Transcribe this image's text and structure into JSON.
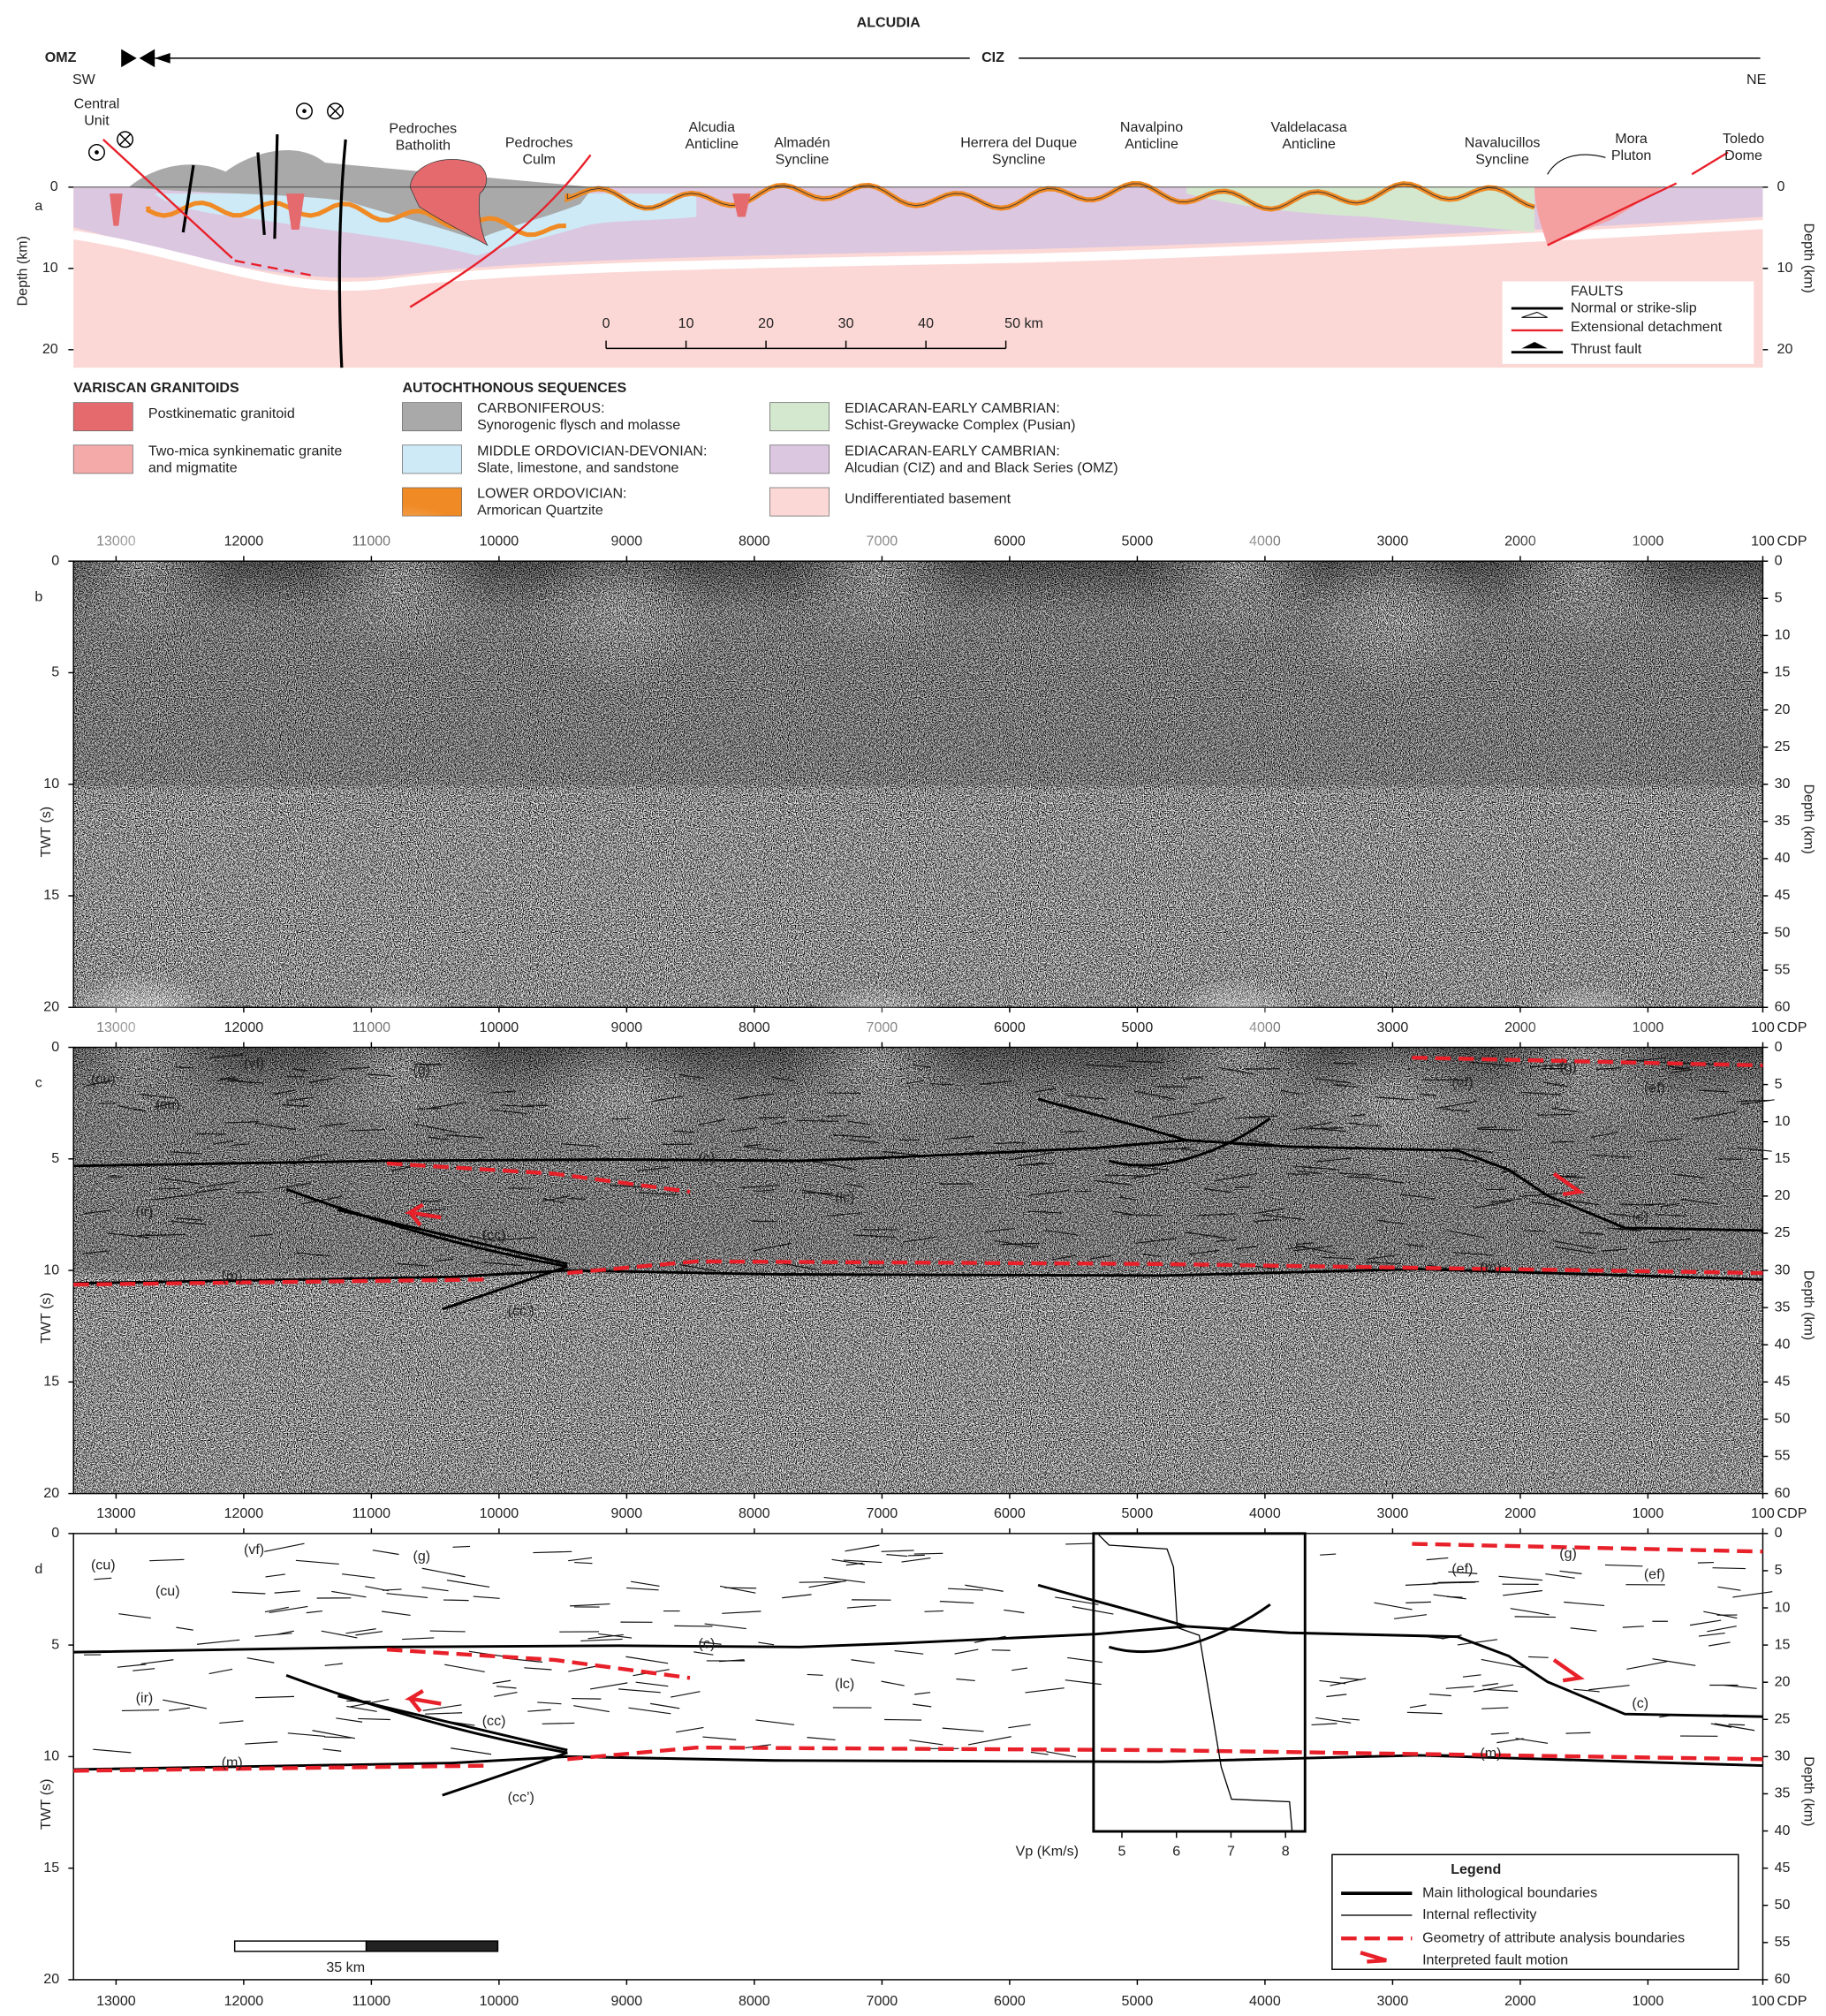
{
  "header": {
    "title": "ALCUDIA",
    "zones": [
      "OMZ",
      "CIZ"
    ],
    "directions": [
      "SW",
      "NE"
    ]
  },
  "panel_a": {
    "label": "a",
    "places": [
      [
        "Central",
        "Unit"
      ],
      [
        "Pedroches",
        "Batholith"
      ],
      [
        "Pedroches",
        "Culm"
      ],
      [
        "Alcudia",
        "Anticline"
      ],
      [
        "Almadén",
        "Syncline"
      ],
      [
        "Herrera del Duque",
        "Syncline"
      ],
      [
        "Navalpino",
        "Anticline"
      ],
      [
        "Valdelacasa",
        "Anticline"
      ],
      [
        "Navalucillos",
        "Syncline"
      ],
      [
        "Mora",
        "Pluton"
      ],
      [
        "Toledo",
        "Dome"
      ]
    ],
    "depth_label": "Depth (km)",
    "depth_ticks": [
      0,
      10,
      20
    ],
    "scale_ticks": [
      "0",
      "10",
      "20",
      "30",
      "40",
      "50 km"
    ],
    "faults": {
      "title": "FAULTS",
      "items": [
        "Normal or strike-slip",
        "Extensional detachment",
        "Thrust fault"
      ]
    }
  },
  "legend": {
    "groups": [
      {
        "title": "VARISCAN GRANITOIDS",
        "items": [
          {
            "lines": [
              "Postkinematic granitoid"
            ],
            "color": "#e46a6e"
          },
          {
            "lines": [
              "Two-mica synkinematic granite",
              "and migmatite"
            ],
            "color": "#f5aaaa"
          }
        ]
      },
      {
        "title": "AUTOCHTHONOUS SEQUENCES",
        "items": [
          {
            "lines": [
              "CARBONIFEROUS:",
              "Synorogenic flysch and molasse"
            ],
            "color": "#a9a9a9"
          },
          {
            "lines": [
              "MIDDLE ORDOVICIAN-DEVONIAN:",
              "Slate, limestone, and sandstone"
            ],
            "color": "#cdeaf6"
          },
          {
            "lines": [
              "LOWER ORDOVICIAN:",
              "Armorican Quartzite"
            ],
            "color": "#f08a24"
          }
        ]
      },
      {
        "title": null,
        "items": [
          {
            "lines": [
              "EDIACARAN-EARLY CAMBRIAN:",
              "Schist-Greywacke Complex (Pusian)"
            ],
            "color": "#d3e8cf"
          },
          {
            "lines": [
              "EDIACARAN-EARLY CAMBRIAN:",
              "Alcudian (CIZ) and and Black Series (OMZ)"
            ],
            "color": "#dcc7e0"
          },
          {
            "lines": [
              "Undifferentiated basement"
            ],
            "color": "#fbd8d5"
          }
        ]
      }
    ]
  },
  "seismic": {
    "cdp_label": "CDP",
    "cdp_ticks": [
      13000,
      12000,
      11000,
      10000,
      9000,
      8000,
      7000,
      6000,
      5000,
      4000,
      3000,
      2000,
      1000,
      100
    ],
    "twt_label": "TWT (s)",
    "twt_ticks": [
      0,
      5,
      10,
      15,
      20
    ],
    "depth_label": "Depth (km)",
    "depth_ticks": [
      0,
      5,
      10,
      15,
      20,
      25,
      30,
      35,
      40,
      45,
      50,
      55,
      60
    ]
  },
  "panel_b": {
    "label": "b"
  },
  "panel_c": {
    "label": "c",
    "labels": [
      "(cu)",
      "(cu)",
      "(vf)",
      "(g)",
      "(c)",
      "(ir)",
      "(lc)",
      "(cc)",
      "(cc’)",
      "(m)",
      "(ef)",
      "(g)",
      "(ef)",
      "(c)",
      "(m)"
    ]
  },
  "panel_d": {
    "label": "d",
    "labels": [
      "(cu)",
      "(cu)",
      "(vf)",
      "(g)",
      "(c)",
      "(ir)",
      "(lc)",
      "(cc)",
      "(cc’)",
      "(m)",
      "(ef)",
      "(g)",
      "(ef)",
      "(c)",
      "(m)"
    ],
    "vp_label": "Vp (Km/s)",
    "vp_ticks": [
      5,
      6,
      7,
      8
    ],
    "scale_label": "35 km",
    "legend": {
      "title": "Legend",
      "items": [
        "Main lithological boundaries",
        "Internal reflectivity",
        "Geometry of attribute analysis boundaries",
        "Interpreted fault motion"
      ]
    }
  }
}
